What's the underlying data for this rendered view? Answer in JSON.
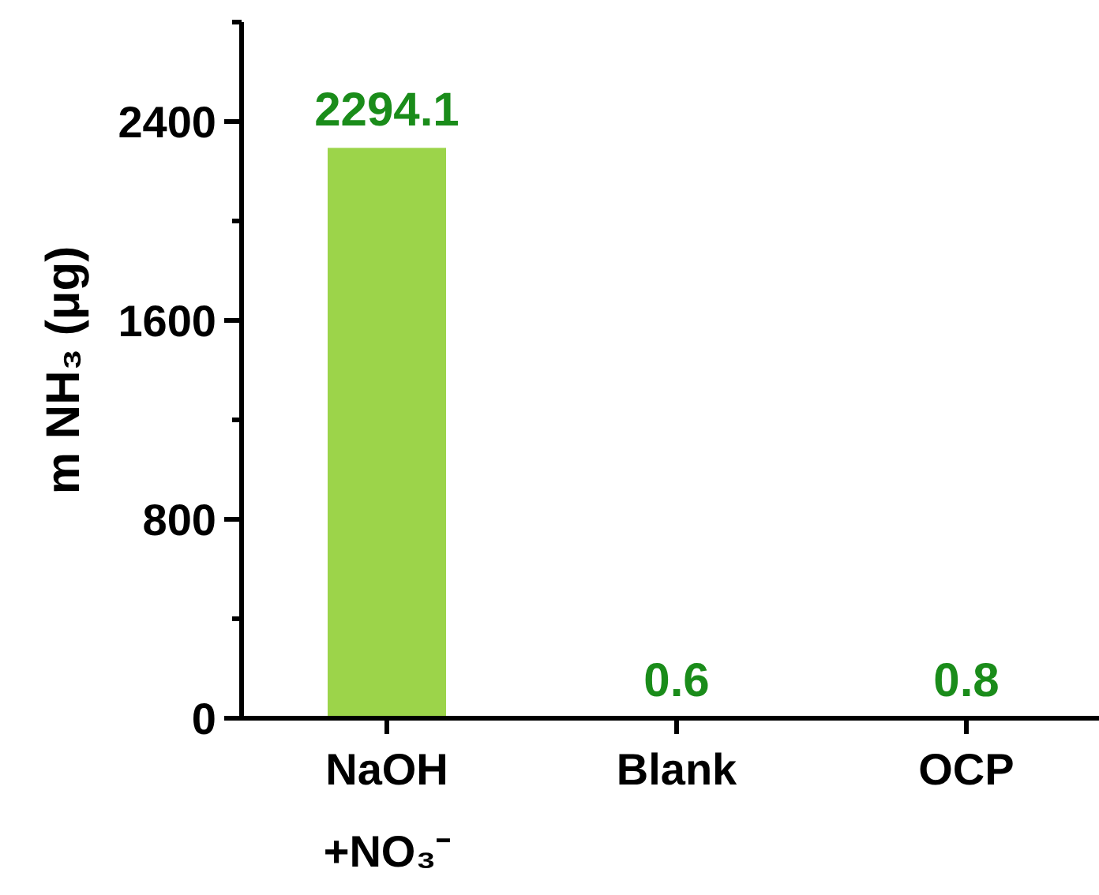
{
  "chart_data": {
    "type": "bar",
    "ylabel": "m NH₃ (μg)",
    "categories": [
      "NaOH\n+NO₃⁻",
      "Blank",
      "OCP"
    ],
    "values": [
      2294.1,
      0.6,
      0.8
    ],
    "color": "#9cd44a",
    "ylim": [
      0,
      2800
    ],
    "yticks": [
      0,
      {
        "value": 400,
        "label": null
      },
      800,
      {
        "value": 1200,
        "label": null
      },
      1600,
      {
        "value": 2000,
        "label": null
      },
      2400,
      {
        "value": 2800,
        "label": null
      }
    ],
    "data_labels": true
  }
}
